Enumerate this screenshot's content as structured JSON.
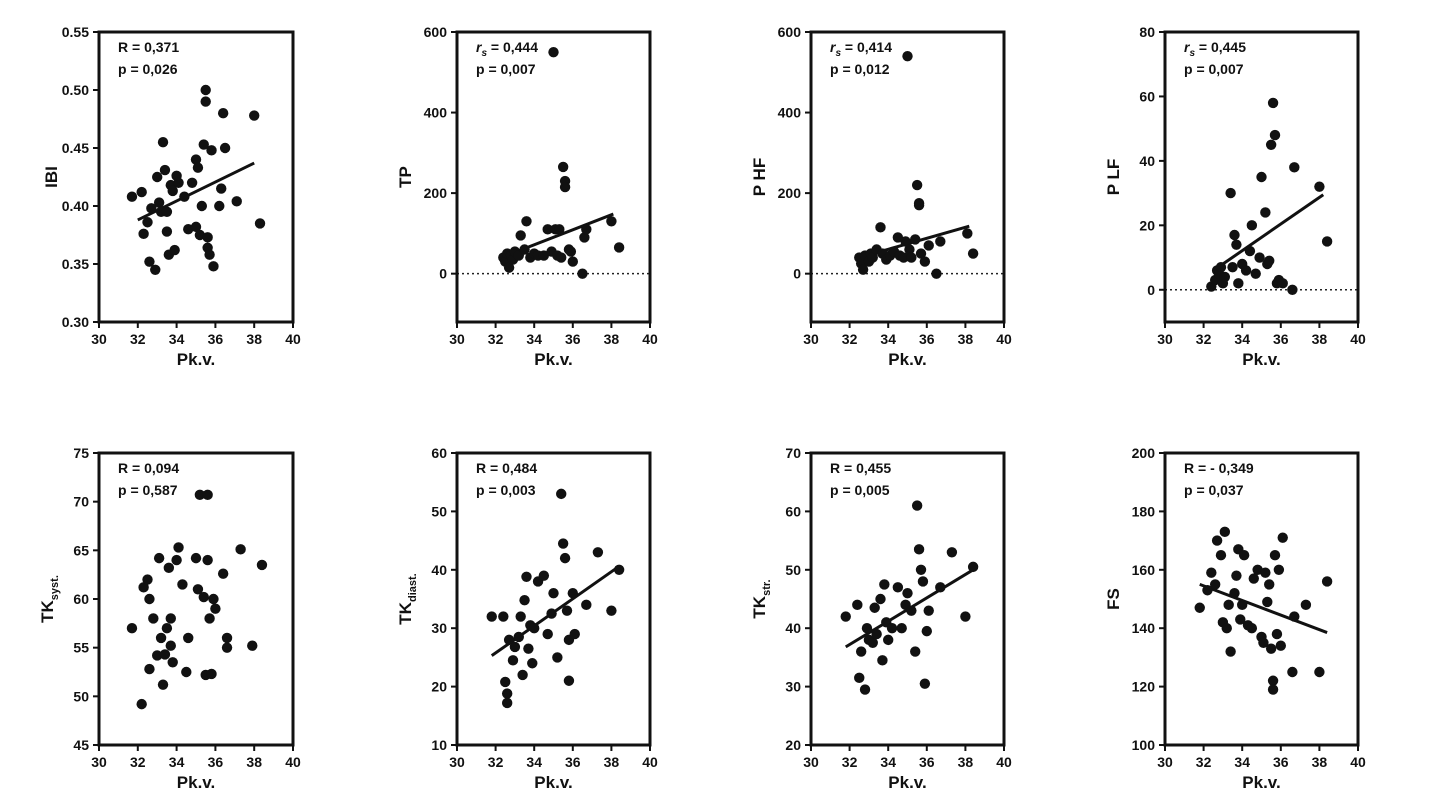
{
  "chart_data": [
    {
      "type": "scatter",
      "ylabel": {
        "main": "IBI",
        "sub": ""
      },
      "xlabel": "Pk.v.",
      "xlim": [
        30,
        40
      ],
      "ylim": [
        0.3,
        0.55
      ],
      "xticks": [
        "30",
        "32",
        "34",
        "36",
        "38",
        "40"
      ],
      "yticks": [
        "0.30",
        "0.35",
        "0.40",
        "0.45",
        "0.50",
        "0.55"
      ],
      "stat1": "R = 0,371",
      "stat2": "p = 0,026",
      "zero_line": false,
      "fit": [
        [
          32,
          0.388
        ],
        [
          38,
          0.437
        ]
      ],
      "points": [
        [
          31.7,
          0.408
        ],
        [
          32.2,
          0.412
        ],
        [
          32.3,
          0.376
        ],
        [
          32.5,
          0.386
        ],
        [
          32.6,
          0.352
        ],
        [
          32.7,
          0.398
        ],
        [
          32.9,
          0.345
        ],
        [
          33.0,
          0.425
        ],
        [
          33.1,
          0.403
        ],
        [
          33.2,
          0.395
        ],
        [
          33.3,
          0.455
        ],
        [
          33.4,
          0.431
        ],
        [
          33.5,
          0.378
        ],
        [
          33.5,
          0.395
        ],
        [
          33.6,
          0.358
        ],
        [
          33.7,
          0.418
        ],
        [
          33.8,
          0.413
        ],
        [
          33.9,
          0.362
        ],
        [
          34.0,
          0.426
        ],
        [
          34.1,
          0.42
        ],
        [
          34.4,
          0.408
        ],
        [
          34.6,
          0.38
        ],
        [
          34.8,
          0.42
        ],
        [
          35.0,
          0.382
        ],
        [
          35.0,
          0.44
        ],
        [
          35.1,
          0.433
        ],
        [
          35.2,
          0.375
        ],
        [
          35.3,
          0.4
        ],
        [
          35.4,
          0.453
        ],
        [
          35.5,
          0.49
        ],
        [
          35.5,
          0.5
        ],
        [
          35.6,
          0.364
        ],
        [
          35.6,
          0.373
        ],
        [
          35.7,
          0.358
        ],
        [
          35.8,
          0.448
        ],
        [
          35.9,
          0.348
        ],
        [
          36.2,
          0.4
        ],
        [
          36.3,
          0.415
        ],
        [
          36.4,
          0.48
        ],
        [
          36.5,
          0.45
        ],
        [
          37.1,
          0.404
        ],
        [
          38.0,
          0.478
        ],
        [
          38.3,
          0.385
        ]
      ]
    },
    {
      "type": "scatter",
      "ylabel": {
        "main": "TP",
        "sub": ""
      },
      "xlabel": "Pk.v.",
      "xlim": [
        30,
        40
      ],
      "ylim": [
        -120,
        600
      ],
      "xticks": [
        "30",
        "32",
        "34",
        "36",
        "38",
        "40"
      ],
      "yticks": [
        "0",
        "200",
        "400",
        "600"
      ],
      "stat1_italic": "r",
      "stat1_sub": "s",
      "stat1": " = 0,444",
      "stat2": "p = 0,007",
      "zero_line": true,
      "fit": [
        [
          32.4,
          42
        ],
        [
          38.1,
          148
        ]
      ],
      "points": [
        [
          32.4,
          40
        ],
        [
          32.5,
          30
        ],
        [
          32.6,
          50
        ],
        [
          32.7,
          15
        ],
        [
          32.8,
          45
        ],
        [
          32.9,
          35
        ],
        [
          33.0,
          55
        ],
        [
          33.2,
          45
        ],
        [
          33.3,
          95
        ],
        [
          33.5,
          60
        ],
        [
          33.6,
          130
        ],
        [
          33.8,
          40
        ],
        [
          34.0,
          50
        ],
        [
          34.2,
          45
        ],
        [
          34.5,
          45
        ],
        [
          34.7,
          110
        ],
        [
          34.9,
          55
        ],
        [
          35.0,
          550
        ],
        [
          35.1,
          110
        ],
        [
          35.2,
          45
        ],
        [
          35.3,
          110
        ],
        [
          35.4,
          40
        ],
        [
          35.5,
          265
        ],
        [
          35.6,
          230
        ],
        [
          35.6,
          215
        ],
        [
          35.8,
          60
        ],
        [
          35.9,
          55
        ],
        [
          36.0,
          30
        ],
        [
          36.5,
          0
        ],
        [
          36.6,
          90
        ],
        [
          36.7,
          110
        ],
        [
          38.0,
          130
        ],
        [
          38.4,
          65
        ]
      ]
    },
    {
      "type": "scatter",
      "ylabel": {
        "main": "P HF",
        "sub": ""
      },
      "xlabel": "Pk.v.",
      "xlim": [
        30,
        40
      ],
      "ylim": [
        -120,
        600
      ],
      "xticks": [
        "30",
        "32",
        "34",
        "36",
        "38",
        "40"
      ],
      "yticks": [
        "0",
        "200",
        "400",
        "600"
      ],
      "stat1_italic": "r",
      "stat1_sub": "s",
      "stat1": " = 0,414",
      "stat2": "p = 0,012",
      "zero_line": true,
      "fit": [
        [
          32.5,
          40
        ],
        [
          38.2,
          118
        ]
      ],
      "points": [
        [
          32.5,
          40
        ],
        [
          32.6,
          25
        ],
        [
          32.7,
          10
        ],
        [
          32.8,
          45
        ],
        [
          33.0,
          30
        ],
        [
          33.1,
          50
        ],
        [
          33.2,
          40
        ],
        [
          33.4,
          60
        ],
        [
          33.6,
          115
        ],
        [
          33.7,
          50
        ],
        [
          33.9,
          35
        ],
        [
          34.1,
          45
        ],
        [
          34.3,
          55
        ],
        [
          34.5,
          90
        ],
        [
          34.6,
          45
        ],
        [
          34.8,
          40
        ],
        [
          34.9,
          80
        ],
        [
          35.0,
          540
        ],
        [
          35.1,
          60
        ],
        [
          35.2,
          40
        ],
        [
          35.4,
          85
        ],
        [
          35.5,
          220
        ],
        [
          35.6,
          175
        ],
        [
          35.6,
          170
        ],
        [
          35.7,
          50
        ],
        [
          35.9,
          30
        ],
        [
          36.1,
          70
        ],
        [
          36.5,
          0
        ],
        [
          36.7,
          80
        ],
        [
          38.1,
          100
        ],
        [
          38.4,
          50
        ]
      ]
    },
    {
      "type": "scatter",
      "ylabel": {
        "main": "P LF",
        "sub": ""
      },
      "xlabel": "Pk.v.",
      "xlim": [
        30,
        40
      ],
      "ylim": [
        -10,
        80
      ],
      "xticks": [
        "30",
        "32",
        "34",
        "36",
        "38",
        "40"
      ],
      "yticks": [
        "0",
        "20",
        "40",
        "60",
        "80"
      ],
      "stat1_italic": "r",
      "stat1_sub": "s",
      "stat1": " = 0,445",
      "stat2": "p = 0,007",
      "zero_line": true,
      "fit": [
        [
          33.0,
          8
        ],
        [
          38.2,
          29.5
        ]
      ],
      "points": [
        [
          32.4,
          1
        ],
        [
          32.6,
          3
        ],
        [
          32.7,
          6
        ],
        [
          32.8,
          5
        ],
        [
          32.9,
          7
        ],
        [
          33.0,
          2
        ],
        [
          33.1,
          4
        ],
        [
          33.4,
          30
        ],
        [
          33.5,
          7
        ],
        [
          33.6,
          17
        ],
        [
          33.7,
          14
        ],
        [
          33.8,
          2
        ],
        [
          34.0,
          8
        ],
        [
          34.2,
          6
        ],
        [
          34.4,
          12
        ],
        [
          34.5,
          20
        ],
        [
          34.7,
          5
        ],
        [
          34.9,
          10
        ],
        [
          35.0,
          35
        ],
        [
          35.2,
          24
        ],
        [
          35.3,
          8
        ],
        [
          35.4,
          9
        ],
        [
          35.5,
          45
        ],
        [
          35.6,
          58
        ],
        [
          35.7,
          48
        ],
        [
          35.8,
          2
        ],
        [
          35.9,
          3
        ],
        [
          36.1,
          2
        ],
        [
          36.6,
          0
        ],
        [
          36.7,
          38
        ],
        [
          38.0,
          32
        ],
        [
          38.4,
          15
        ]
      ]
    },
    {
      "type": "scatter",
      "ylabel": {
        "main": "TK",
        "sub": "syst."
      },
      "xlabel": "Pk.v.",
      "xlim": [
        30,
        40
      ],
      "ylim": [
        45,
        75
      ],
      "xticks": [
        "30",
        "32",
        "34",
        "36",
        "38",
        "40"
      ],
      "yticks": [
        "45",
        "50",
        "55",
        "60",
        "65",
        "70",
        "75"
      ],
      "stat1": "R = 0,094",
      "stat2": "p = 0,587",
      "zero_line": false,
      "fit": null,
      "points": [
        [
          31.7,
          57
        ],
        [
          32.2,
          49.2
        ],
        [
          32.3,
          61.2
        ],
        [
          32.5,
          62
        ],
        [
          32.6,
          60
        ],
        [
          32.6,
          52.8
        ],
        [
          32.8,
          58
        ],
        [
          33.0,
          54.2
        ],
        [
          33.1,
          64.2
        ],
        [
          33.2,
          56
        ],
        [
          33.3,
          51.2
        ],
        [
          33.4,
          54.3
        ],
        [
          33.5,
          57
        ],
        [
          33.6,
          63.2
        ],
        [
          33.7,
          58
        ],
        [
          33.7,
          55.2
        ],
        [
          33.8,
          53.5
        ],
        [
          34.0,
          64
        ],
        [
          34.1,
          65.3
        ],
        [
          34.3,
          61.5
        ],
        [
          34.5,
          52.5
        ],
        [
          34.6,
          56
        ],
        [
          35.0,
          64.2
        ],
        [
          35.1,
          61
        ],
        [
          35.2,
          70.7
        ],
        [
          35.4,
          60.2
        ],
        [
          35.5,
          52.2
        ],
        [
          35.6,
          70.7
        ],
        [
          35.6,
          64
        ],
        [
          35.7,
          58
        ],
        [
          35.8,
          52.3
        ],
        [
          35.9,
          60
        ],
        [
          36.0,
          59
        ],
        [
          36.4,
          62.6
        ],
        [
          36.6,
          56
        ],
        [
          36.6,
          55
        ],
        [
          37.3,
          65.1
        ],
        [
          37.9,
          55.2
        ],
        [
          38.4,
          63.5
        ]
      ]
    },
    {
      "type": "scatter",
      "ylabel": {
        "main": "TK",
        "sub": "diast."
      },
      "xlabel": "Pk.v.",
      "xlim": [
        30,
        40
      ],
      "ylim": [
        10,
        60
      ],
      "xticks": [
        "30",
        "32",
        "34",
        "36",
        "38",
        "40"
      ],
      "yticks": [
        "10",
        "20",
        "30",
        "40",
        "50",
        "60"
      ],
      "stat1": "R = 0,484",
      "stat2": "p = 0,003",
      "zero_line": false,
      "fit": [
        [
          31.8,
          25.3
        ],
        [
          38.4,
          40.6
        ]
      ],
      "points": [
        [
          31.8,
          32
        ],
        [
          32.4,
          32
        ],
        [
          32.5,
          20.8
        ],
        [
          32.6,
          18.8
        ],
        [
          32.6,
          17.2
        ],
        [
          32.7,
          28
        ],
        [
          32.9,
          24.5
        ],
        [
          33.0,
          26.8
        ],
        [
          33.2,
          28.5
        ],
        [
          33.3,
          32
        ],
        [
          33.4,
          22
        ],
        [
          33.5,
          34.8
        ],
        [
          33.6,
          38.8
        ],
        [
          33.7,
          26.5
        ],
        [
          33.8,
          30.5
        ],
        [
          33.9,
          24
        ],
        [
          34.0,
          30
        ],
        [
          34.2,
          38
        ],
        [
          34.5,
          39
        ],
        [
          34.7,
          29
        ],
        [
          34.9,
          32.5
        ],
        [
          35.0,
          36
        ],
        [
          35.2,
          25
        ],
        [
          35.4,
          53
        ],
        [
          35.5,
          44.5
        ],
        [
          35.6,
          42
        ],
        [
          35.7,
          33
        ],
        [
          35.8,
          28
        ],
        [
          35.8,
          21
        ],
        [
          36.0,
          36
        ],
        [
          36.1,
          29
        ],
        [
          36.7,
          34
        ],
        [
          37.3,
          43
        ],
        [
          38.0,
          33
        ],
        [
          38.4,
          40
        ]
      ]
    },
    {
      "type": "scatter",
      "ylabel": {
        "main": "TK",
        "sub": "str."
      },
      "xlabel": "Pk.v.",
      "xlim": [
        30,
        40
      ],
      "ylim": [
        20,
        70
      ],
      "xticks": [
        "30",
        "32",
        "34",
        "36",
        "38",
        "40"
      ],
      "yticks": [
        "20",
        "30",
        "40",
        "50",
        "60",
        "70"
      ],
      "stat1": "R = 0,455",
      "stat2": "p = 0,005",
      "zero_line": false,
      "fit": [
        [
          31.8,
          36.8
        ],
        [
          38.4,
          50
        ]
      ],
      "points": [
        [
          31.8,
          42
        ],
        [
          32.4,
          44
        ],
        [
          32.5,
          31.5
        ],
        [
          32.6,
          36
        ],
        [
          32.8,
          29.5
        ],
        [
          32.9,
          40
        ],
        [
          33.0,
          38
        ],
        [
          33.2,
          37.5
        ],
        [
          33.3,
          43.5
        ],
        [
          33.4,
          39
        ],
        [
          33.6,
          45
        ],
        [
          33.7,
          34.5
        ],
        [
          33.8,
          47.5
        ],
        [
          33.9,
          41
        ],
        [
          34.0,
          38
        ],
        [
          34.2,
          40
        ],
        [
          34.5,
          47
        ],
        [
          34.7,
          40
        ],
        [
          34.9,
          44
        ],
        [
          35.0,
          46
        ],
        [
          35.2,
          43
        ],
        [
          35.4,
          36
        ],
        [
          35.5,
          61
        ],
        [
          35.6,
          53.5
        ],
        [
          35.7,
          50
        ],
        [
          35.8,
          48
        ],
        [
          35.9,
          30.5
        ],
        [
          36.0,
          39.5
        ],
        [
          36.1,
          43
        ],
        [
          36.7,
          47
        ],
        [
          37.3,
          53
        ],
        [
          38.0,
          42
        ],
        [
          38.4,
          50.5
        ]
      ]
    },
    {
      "type": "scatter",
      "ylabel": {
        "main": "FS",
        "sub": ""
      },
      "xlabel": "Pk.v.",
      "xlim": [
        30,
        40
      ],
      "ylim": [
        100,
        200
      ],
      "xticks": [
        "30",
        "32",
        "34",
        "36",
        "38",
        "40"
      ],
      "yticks": [
        "100",
        "120",
        "140",
        "160",
        "180",
        "200"
      ],
      "stat1": "R = - 0,349",
      "stat2": "p = 0,037",
      "zero_line": false,
      "fit": [
        [
          31.8,
          155
        ],
        [
          38.4,
          138.5
        ]
      ],
      "points": [
        [
          31.8,
          147
        ],
        [
          32.2,
          153
        ],
        [
          32.4,
          159
        ],
        [
          32.6,
          155
        ],
        [
          32.7,
          170
        ],
        [
          32.9,
          165
        ],
        [
          33.0,
          142
        ],
        [
          33.1,
          173
        ],
        [
          33.2,
          140
        ],
        [
          33.3,
          148
        ],
        [
          33.4,
          132
        ],
        [
          33.6,
          152
        ],
        [
          33.7,
          158
        ],
        [
          33.8,
          167
        ],
        [
          33.9,
          143
        ],
        [
          34.0,
          148
        ],
        [
          34.1,
          165
        ],
        [
          34.3,
          141
        ],
        [
          34.5,
          140
        ],
        [
          34.6,
          157
        ],
        [
          34.8,
          160
        ],
        [
          35.0,
          137
        ],
        [
          35.1,
          135
        ],
        [
          35.2,
          159
        ],
        [
          35.3,
          149
        ],
        [
          35.4,
          155
        ],
        [
          35.5,
          133
        ],
        [
          35.6,
          122
        ],
        [
          35.6,
          119
        ],
        [
          35.7,
          165
        ],
        [
          35.8,
          138
        ],
        [
          35.9,
          160
        ],
        [
          36.0,
          134
        ],
        [
          36.1,
          171
        ],
        [
          36.6,
          125
        ],
        [
          36.7,
          144
        ],
        [
          37.3,
          148
        ],
        [
          38.0,
          125
        ],
        [
          38.4,
          156
        ]
      ]
    }
  ]
}
